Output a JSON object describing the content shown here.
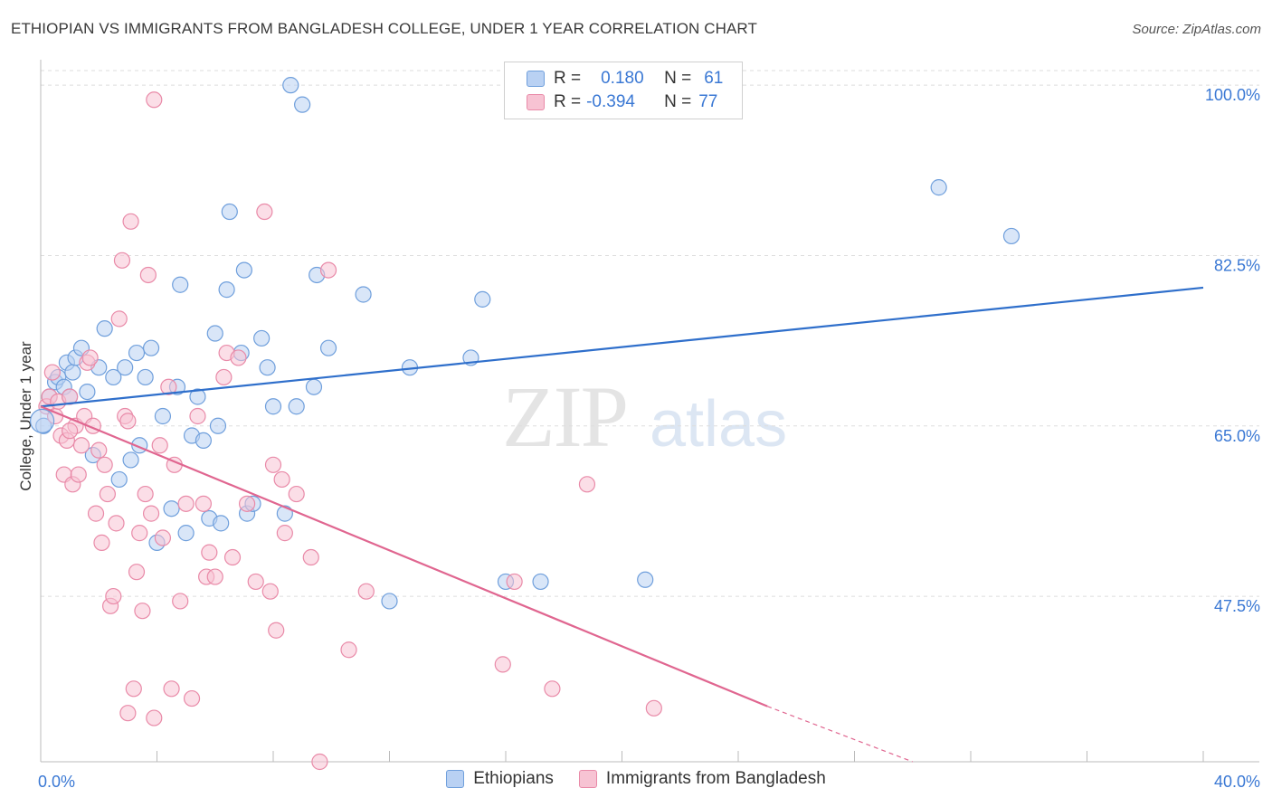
{
  "header": {
    "title": "ETHIOPIAN VS IMMIGRANTS FROM BANGLADESH COLLEGE, UNDER 1 YEAR CORRELATION CHART",
    "source": "Source: ZipAtlas.com"
  },
  "watermark": {
    "zip": "ZIP",
    "atlas": "atlas"
  },
  "legend_stats": {
    "rows": [
      {
        "r_label": "R =",
        "r_value": "0.180",
        "n_label": "N =",
        "n_value": "61"
      },
      {
        "r_label": "R =",
        "r_value": "-0.394",
        "n_label": "N =",
        "n_value": "77"
      }
    ]
  },
  "colors": {
    "blue_fill": "#b9d1f3",
    "blue_stroke": "#6f9fdc",
    "blue_line": "#2f6fcb",
    "pink_fill": "#f7c3d3",
    "pink_stroke": "#e98aa8",
    "pink_line": "#e06690",
    "tick_text": "#3a78d4",
    "grid": "#dddddd"
  },
  "chart_data": {
    "type": "scatter",
    "title": "ETHIOPIAN VS IMMIGRANTS FROM BANGLADESH COLLEGE, UNDER 1 YEAR CORRELATION CHART",
    "xlabel": "",
    "ylabel": "College, Under 1 year",
    "xlim": [
      0,
      40
    ],
    "ylim": [
      30.5,
      101.5
    ],
    "x_tick_labels": [
      "0.0%",
      "40.0%"
    ],
    "y_ticks": [
      47.5,
      65.0,
      82.5,
      100.0
    ],
    "y_tick_labels": [
      "47.5%",
      "65.0%",
      "82.5%",
      "100.0%"
    ],
    "legend": [
      "Ethiopians",
      "Immigrants from Bangladesh"
    ],
    "series": [
      {
        "name": "Ethiopians",
        "R": 0.18,
        "N": 61,
        "trend": {
          "x": [
            0,
            40
          ],
          "y": [
            67.0,
            79.2
          ]
        },
        "points": [
          [
            0.1,
            65.0
          ],
          [
            0.3,
            68.0
          ],
          [
            0.5,
            69.5
          ],
          [
            0.6,
            70.0
          ],
          [
            0.8,
            69.0
          ],
          [
            0.9,
            71.5
          ],
          [
            1.1,
            70.5
          ],
          [
            1.2,
            72.0
          ],
          [
            1.4,
            73.0
          ],
          [
            1.6,
            68.5
          ],
          [
            1.8,
            62.0
          ],
          [
            2.0,
            71.0
          ],
          [
            2.2,
            75.0
          ],
          [
            2.5,
            70.0
          ],
          [
            2.7,
            59.5
          ],
          [
            2.9,
            71.0
          ],
          [
            3.1,
            61.5
          ],
          [
            3.3,
            72.5
          ],
          [
            3.4,
            63.0
          ],
          [
            3.6,
            70.0
          ],
          [
            3.8,
            73.0
          ],
          [
            4.0,
            53.0
          ],
          [
            4.2,
            66.0
          ],
          [
            4.5,
            56.5
          ],
          [
            4.8,
            79.5
          ],
          [
            4.7,
            69.0
          ],
          [
            5.0,
            54.0
          ],
          [
            5.2,
            64.0
          ],
          [
            5.4,
            68.0
          ],
          [
            5.6,
            63.5
          ],
          [
            5.8,
            55.5
          ],
          [
            6.0,
            74.5
          ],
          [
            6.1,
            65.0
          ],
          [
            6.2,
            55.0
          ],
          [
            6.4,
            79.0
          ],
          [
            6.5,
            87.0
          ],
          [
            6.9,
            72.5
          ],
          [
            7.0,
            81.0
          ],
          [
            7.1,
            56.0
          ],
          [
            7.3,
            57.0
          ],
          [
            7.6,
            74.0
          ],
          [
            7.8,
            71.0
          ],
          [
            8.0,
            67.0
          ],
          [
            8.4,
            56.0
          ],
          [
            8.6,
            100.0
          ],
          [
            8.8,
            67.0
          ],
          [
            9.0,
            98.0
          ],
          [
            9.4,
            69.0
          ],
          [
            9.5,
            80.5
          ],
          [
            9.9,
            73.0
          ],
          [
            11.1,
            78.5
          ],
          [
            12.0,
            47.0
          ],
          [
            12.7,
            71.0
          ],
          [
            14.8,
            72.0
          ],
          [
            15.2,
            78.0
          ],
          [
            16.0,
            49.0
          ],
          [
            17.2,
            49.0
          ],
          [
            20.8,
            49.2
          ],
          [
            30.9,
            89.5
          ],
          [
            33.4,
            84.5
          ],
          [
            1.0,
            68.0
          ]
        ]
      },
      {
        "name": "Immigrants from Bangladesh",
        "R": -0.394,
        "N": 77,
        "trend": {
          "x": [
            0,
            25
          ],
          "y": [
            67.0,
            36.2
          ]
        },
        "trend_dashed": {
          "x": [
            25,
            30
          ],
          "y": [
            36.2,
            30.5
          ]
        },
        "points": [
          [
            0.2,
            67.0
          ],
          [
            0.3,
            68.0
          ],
          [
            0.4,
            70.5
          ],
          [
            0.5,
            66.0
          ],
          [
            0.6,
            67.5
          ],
          [
            0.7,
            64.0
          ],
          [
            0.8,
            60.0
          ],
          [
            0.9,
            63.5
          ],
          [
            1.0,
            68.0
          ],
          [
            1.1,
            59.0
          ],
          [
            1.2,
            65.0
          ],
          [
            1.3,
            60.0
          ],
          [
            1.4,
            63.0
          ],
          [
            1.5,
            66.0
          ],
          [
            1.6,
            71.5
          ],
          [
            1.7,
            72.0
          ],
          [
            1.8,
            65.0
          ],
          [
            1.9,
            56.0
          ],
          [
            2.0,
            62.5
          ],
          [
            2.1,
            53.0
          ],
          [
            2.2,
            61.0
          ],
          [
            2.3,
            58.0
          ],
          [
            2.4,
            46.5
          ],
          [
            2.5,
            47.5
          ],
          [
            2.6,
            55.0
          ],
          [
            2.7,
            76.0
          ],
          [
            2.8,
            82.0
          ],
          [
            2.9,
            66.0
          ],
          [
            3.0,
            65.5
          ],
          [
            3.1,
            86.0
          ],
          [
            3.2,
            38.0
          ],
          [
            3.3,
            50.0
          ],
          [
            3.4,
            54.0
          ],
          [
            3.5,
            46.0
          ],
          [
            3.6,
            58.0
          ],
          [
            3.7,
            80.5
          ],
          [
            3.8,
            56.0
          ],
          [
            3.9,
            98.5
          ],
          [
            4.1,
            63.0
          ],
          [
            4.2,
            53.5
          ],
          [
            4.4,
            69.0
          ],
          [
            4.5,
            38.0
          ],
          [
            4.6,
            61.0
          ],
          [
            4.8,
            47.0
          ],
          [
            5.0,
            57.0
          ],
          [
            5.2,
            37.0
          ],
          [
            5.4,
            66.0
          ],
          [
            5.6,
            57.0
          ],
          [
            5.7,
            49.5
          ],
          [
            5.8,
            52.0
          ],
          [
            6.0,
            49.5
          ],
          [
            6.3,
            70.0
          ],
          [
            6.4,
            72.5
          ],
          [
            6.6,
            51.5
          ],
          [
            6.8,
            72.0
          ],
          [
            7.1,
            57.0
          ],
          [
            7.4,
            49.0
          ],
          [
            7.7,
            87.0
          ],
          [
            7.9,
            48.0
          ],
          [
            8.0,
            61.0
          ],
          [
            8.1,
            44.0
          ],
          [
            8.3,
            59.5
          ],
          [
            8.4,
            54.0
          ],
          [
            8.8,
            58.0
          ],
          [
            9.3,
            51.5
          ],
          [
            9.6,
            30.5
          ],
          [
            9.9,
            81.0
          ],
          [
            10.6,
            42.0
          ],
          [
            11.2,
            48.0
          ],
          [
            15.9,
            40.5
          ],
          [
            16.3,
            49.0
          ],
          [
            17.6,
            38.0
          ],
          [
            18.8,
            59.0
          ],
          [
            21.1,
            36.0
          ],
          [
            3.9,
            35.0
          ],
          [
            3.0,
            35.5
          ],
          [
            1.0,
            64.5
          ]
        ]
      }
    ]
  }
}
